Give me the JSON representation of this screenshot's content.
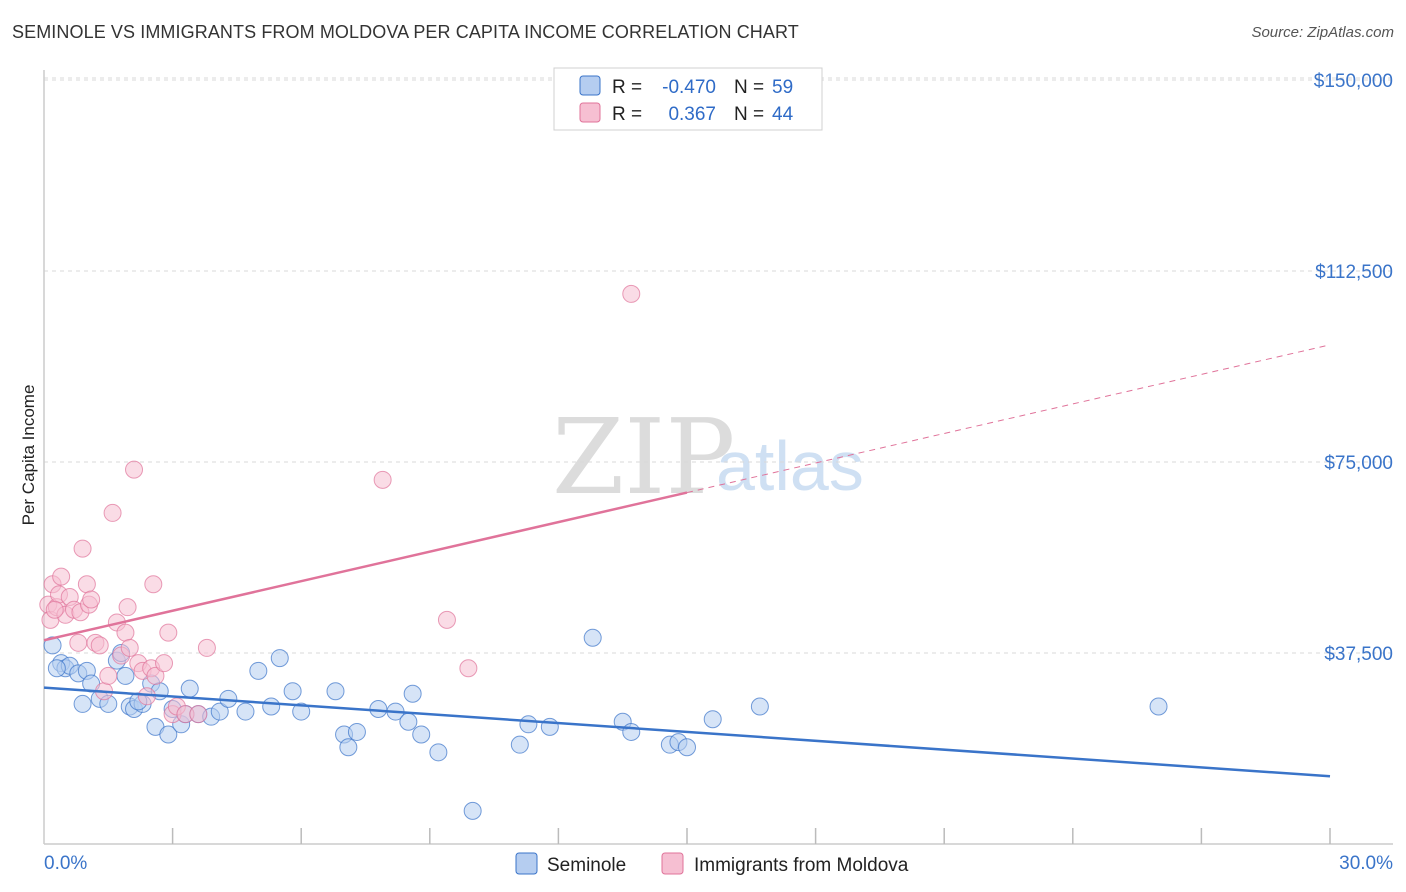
{
  "title": "SEMINOLE VS IMMIGRANTS FROM MOLDOVA PER CAPITA INCOME CORRELATION CHART",
  "source": "Source: ZipAtlas.com",
  "watermark": {
    "zip": "ZIP",
    "atlas": "atlas"
  },
  "colors": {
    "seminole": "#3a74c9",
    "moldova": "#e0739a",
    "seminole_fill": "#b5cdf0",
    "moldova_fill": "#f6bfd2",
    "tick_text": "#3a74c9",
    "grid": "#d9d9d9"
  },
  "legend_stats": [
    {
      "r_label": "R =",
      "r_value": "-0.470",
      "n_label": "N =",
      "n_value": "59"
    },
    {
      "r_label": "R =",
      "r_value": "0.367",
      "n_label": "N =",
      "n_value": "44"
    }
  ],
  "chart_data": {
    "type": "scatter",
    "title": "SEMINOLE VS IMMIGRANTS FROM MOLDOVA PER CAPITA INCOME CORRELATION CHART",
    "xlabel": "",
    "ylabel": "Per Capita Income",
    "xlim": [
      0,
      30
    ],
    "ylim": [
      0,
      150000
    ],
    "x_tick_labels": [
      "0.0%",
      "30.0%"
    ],
    "y_ticks": [
      {
        "value": 150000,
        "label": "$150,000"
      },
      {
        "value": 112500,
        "label": "$112,500"
      },
      {
        "value": 75000,
        "label": "$75,000"
      },
      {
        "value": 37500,
        "label": "$37,500"
      }
    ],
    "grid": true,
    "legend_position": "bottom",
    "series": [
      {
        "name": "Seminole",
        "r": -0.47,
        "n": 59,
        "trend": {
          "x0": 0,
          "y0": 30700,
          "x1": 30,
          "y1": 13300,
          "dashed_from": null
        },
        "points": [
          [
            0.2,
            39000
          ],
          [
            0.4,
            35500
          ],
          [
            0.5,
            34500
          ],
          [
            0.6,
            35000
          ],
          [
            0.8,
            33500
          ],
          [
            0.9,
            27500
          ],
          [
            1.0,
            34000
          ],
          [
            1.1,
            31500
          ],
          [
            1.3,
            28500
          ],
          [
            1.5,
            27500
          ],
          [
            1.7,
            36000
          ],
          [
            1.8,
            37500
          ],
          [
            1.9,
            33000
          ],
          [
            2.0,
            27000
          ],
          [
            2.1,
            26500
          ],
          [
            2.3,
            27500
          ],
          [
            2.5,
            31500
          ],
          [
            2.6,
            23000
          ],
          [
            2.7,
            30000
          ],
          [
            2.9,
            21500
          ],
          [
            3.0,
            26500
          ],
          [
            3.2,
            23500
          ],
          [
            3.3,
            25500
          ],
          [
            3.4,
            30500
          ],
          [
            3.6,
            25500
          ],
          [
            3.9,
            25000
          ],
          [
            4.1,
            26000
          ],
          [
            4.3,
            28500
          ],
          [
            4.7,
            26000
          ],
          [
            5.0,
            34000
          ],
          [
            5.3,
            27000
          ],
          [
            5.5,
            36500
          ],
          [
            5.8,
            30000
          ],
          [
            6.0,
            26000
          ],
          [
            6.8,
            30000
          ],
          [
            7.0,
            21500
          ],
          [
            7.1,
            19000
          ],
          [
            7.3,
            22000
          ],
          [
            7.8,
            26500
          ],
          [
            8.2,
            26000
          ],
          [
            8.5,
            24000
          ],
          [
            8.6,
            29500
          ],
          [
            8.8,
            21500
          ],
          [
            9.2,
            18000
          ],
          [
            10.0,
            6500
          ],
          [
            11.1,
            19500
          ],
          [
            11.3,
            23500
          ],
          [
            11.8,
            23000
          ],
          [
            12.8,
            40500
          ],
          [
            13.5,
            24000
          ],
          [
            13.7,
            22000
          ],
          [
            14.6,
            19500
          ],
          [
            14.8,
            20000
          ],
          [
            15.0,
            19000
          ],
          [
            15.6,
            24500
          ],
          [
            16.7,
            27000
          ],
          [
            26.0,
            27000
          ],
          [
            0.3,
            34500
          ],
          [
            2.2,
            28000
          ]
        ]
      },
      {
        "name": "Immigrants from Moldova",
        "r": 0.367,
        "n": 44,
        "trend": {
          "x0": 0,
          "y0": 40000,
          "x1": 30,
          "y1": 98000,
          "dashed_from": 15
        },
        "points": [
          [
            0.1,
            47000
          ],
          [
            0.15,
            44000
          ],
          [
            0.2,
            51000
          ],
          [
            0.3,
            46500
          ],
          [
            0.35,
            49000
          ],
          [
            0.4,
            52500
          ],
          [
            0.5,
            45000
          ],
          [
            0.6,
            48500
          ],
          [
            0.7,
            46000
          ],
          [
            0.8,
            39500
          ],
          [
            0.85,
            45500
          ],
          [
            0.9,
            58000
          ],
          [
            1.0,
            51000
          ],
          [
            1.05,
            47000
          ],
          [
            1.1,
            48000
          ],
          [
            1.2,
            39500
          ],
          [
            1.3,
            39000
          ],
          [
            1.4,
            30000
          ],
          [
            1.5,
            33000
          ],
          [
            1.6,
            65000
          ],
          [
            1.7,
            43500
          ],
          [
            1.8,
            37000
          ],
          [
            1.9,
            41500
          ],
          [
            2.0,
            38500
          ],
          [
            1.95,
            46500
          ],
          [
            2.1,
            73500
          ],
          [
            2.2,
            35500
          ],
          [
            2.3,
            34000
          ],
          [
            2.4,
            29000
          ],
          [
            2.5,
            34500
          ],
          [
            2.6,
            33000
          ],
          [
            2.55,
            51000
          ],
          [
            2.8,
            35500
          ],
          [
            2.9,
            41500
          ],
          [
            3.0,
            25500
          ],
          [
            3.1,
            27000
          ],
          [
            3.3,
            25500
          ],
          [
            3.6,
            25500
          ],
          [
            3.8,
            38500
          ],
          [
            7.9,
            71500
          ],
          [
            9.4,
            44000
          ],
          [
            9.9,
            34500
          ],
          [
            13.7,
            108000
          ],
          [
            0.25,
            46000
          ]
        ]
      }
    ]
  },
  "bottom_legend": [
    {
      "key": "seminole",
      "label": "Seminole"
    },
    {
      "key": "moldova",
      "label": "Immigrants from Moldova"
    }
  ]
}
